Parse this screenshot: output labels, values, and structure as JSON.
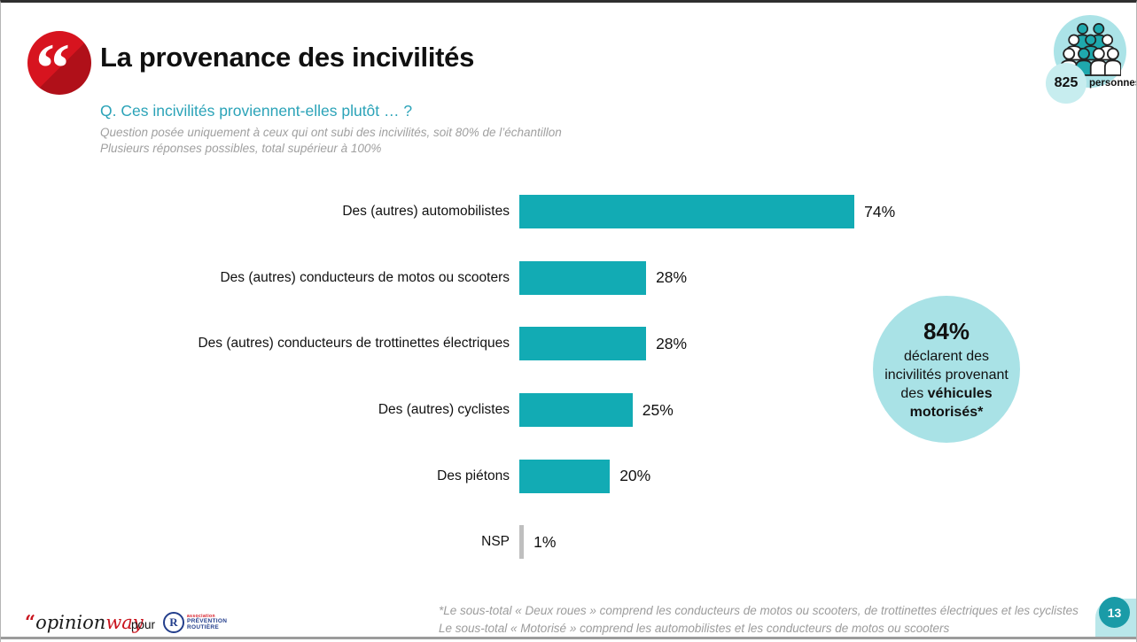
{
  "slide": {
    "title": "La provenance des incivilités",
    "page_number": "13"
  },
  "sample_badge": {
    "count": "825",
    "unit": "personnes"
  },
  "question": {
    "text": "Q. Ces incivilités proviennent-elles plutôt … ?",
    "note1": "Question posée uniquement à ceux qui ont subi des incivilités, soit 80% de l’échantillon",
    "note2": "Plusieurs réponses possibles, total supérieur à 100%"
  },
  "chart_data": {
    "type": "bar",
    "orientation": "horizontal",
    "unit": "%",
    "xlim": [
      0,
      100
    ],
    "grid": false,
    "legend": false,
    "categories": [
      "Des (autres) automobilistes",
      "Des (autres) conducteurs de motos ou scooters",
      "Des (autres) conducteurs de trottinettes électriques",
      "Des (autres) cyclistes",
      "Des piétons",
      "NSP"
    ],
    "values": [
      74,
      28,
      28,
      25,
      20,
      1
    ],
    "value_labels": [
      "74%",
      "28%",
      "28%",
      "25%",
      "20%",
      "1%"
    ],
    "bar_colors": [
      "#12abb4",
      "#12abb4",
      "#12abb4",
      "#12abb4",
      "#12abb4",
      "#bfbfbf"
    ]
  },
  "highlight": {
    "value": "84%",
    "text_regular": "déclarent des incivilités provenant des ",
    "text_bold": "véhicules motorisés*",
    "circle_color": "#a9e2e6"
  },
  "footnote": {
    "line1": "*Le sous-total « Deux roues » comprend les conducteurs de motos ou scooters, de trottinettes électriques et les cyclistes",
    "line2": "Le sous-total « Motorisé » comprend les automobilistes et les conducteurs de motos ou scooters"
  },
  "footer": {
    "opinionway_quote": "“",
    "opinionway_part1": "opinion",
    "opinionway_part2": "way",
    "pour": "pour",
    "pr_logo": {
      "r": "R",
      "line1": "association",
      "line2": "PRÉVENTION",
      "line3": "ROUTIÈRE"
    }
  },
  "colors": {
    "accent_teal": "#12abb4",
    "question_teal": "#2ba3b8",
    "light_teal_circle": "#abe3e7",
    "brand_red": "#d7141f",
    "page_circle_teal": "#1a9ba7",
    "nsp_gray": "#bfbfbf"
  }
}
